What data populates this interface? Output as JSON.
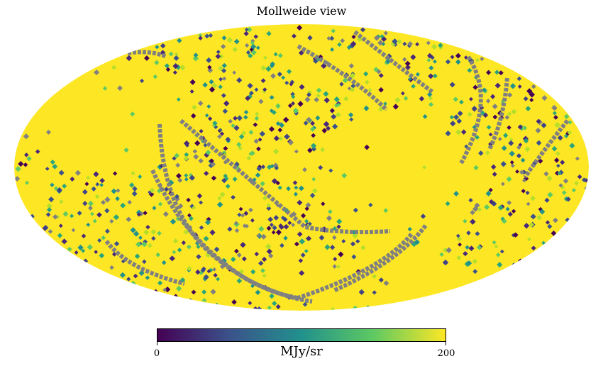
{
  "title": "Mollweide view",
  "colorbar": {
    "min_label": "0",
    "max_label": "200",
    "unit": "MJy/sr",
    "min": 0,
    "max": 200,
    "colormap": [
      "#440154",
      "#3b528b",
      "#21918c",
      "#5ec962",
      "#fde725"
    ],
    "unseen_color": "#808080",
    "fill_color": "#fde725"
  },
  "map": {
    "projection": "Mollweide",
    "bad_pixel_color": "#808080"
  }
}
